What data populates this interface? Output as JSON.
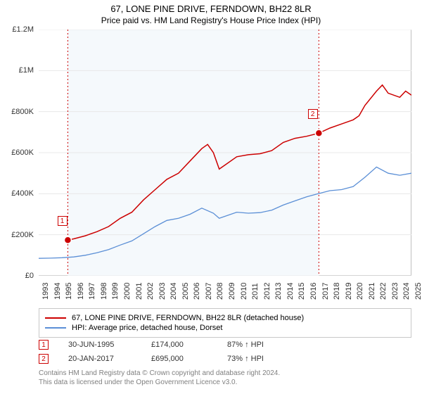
{
  "title": "67, LONE PINE DRIVE, FERNDOWN, BH22 8LR",
  "subtitle": "Price paid vs. HM Land Registry's House Price Index (HPI)",
  "chart": {
    "type": "line",
    "background_color": "#ffffff",
    "plot_band_color": "#f5f9fc",
    "grid_color": "#e8e8e8",
    "axis_color": "#c0c0c0",
    "x_start": 1993,
    "x_end": 2025,
    "x_ticks": [
      1993,
      1994,
      1995,
      1996,
      1997,
      1998,
      1999,
      2000,
      2001,
      2002,
      2003,
      2004,
      2005,
      2006,
      2007,
      2008,
      2009,
      2010,
      2011,
      2012,
      2013,
      2014,
      2015,
      2016,
      2017,
      2018,
      2019,
      2020,
      2021,
      2022,
      2023,
      2024,
      2025
    ],
    "y_min": 0,
    "y_max": 1200000,
    "y_ticks": [
      0,
      200000,
      400000,
      600000,
      800000,
      1000000,
      1200000
    ],
    "y_labels": [
      "£0",
      "£200K",
      "£400K",
      "£600K",
      "£800K",
      "£1M",
      "£1.2M"
    ],
    "y_label_fontsize": 11,
    "x_label_fontsize": 11,
    "series": [
      {
        "name": "address",
        "color": "#cc0000",
        "width": 1.5,
        "data": [
          [
            1995.5,
            174000
          ],
          [
            1996,
            180000
          ],
          [
            1997,
            195000
          ],
          [
            1998,
            215000
          ],
          [
            1999,
            240000
          ],
          [
            2000,
            280000
          ],
          [
            2001,
            310000
          ],
          [
            2002,
            370000
          ],
          [
            2003,
            420000
          ],
          [
            2004,
            470000
          ],
          [
            2005,
            500000
          ],
          [
            2006,
            560000
          ],
          [
            2007,
            620000
          ],
          [
            2007.5,
            640000
          ],
          [
            2008,
            600000
          ],
          [
            2008.5,
            520000
          ],
          [
            2009,
            540000
          ],
          [
            2010,
            580000
          ],
          [
            2011,
            590000
          ],
          [
            2012,
            595000
          ],
          [
            2013,
            610000
          ],
          [
            2014,
            650000
          ],
          [
            2015,
            670000
          ],
          [
            2016,
            680000
          ],
          [
            2017.05,
            695000
          ],
          [
            2018,
            720000
          ],
          [
            2019,
            740000
          ],
          [
            2020,
            760000
          ],
          [
            2020.5,
            780000
          ],
          [
            2021,
            830000
          ],
          [
            2022,
            900000
          ],
          [
            2022.5,
            930000
          ],
          [
            2023,
            890000
          ],
          [
            2024,
            870000
          ],
          [
            2024.5,
            900000
          ],
          [
            2025,
            880000
          ]
        ]
      },
      {
        "name": "hpi",
        "color": "#5b8fd6",
        "width": 1.3,
        "data": [
          [
            1993,
            85000
          ],
          [
            1994,
            86000
          ],
          [
            1995,
            88000
          ],
          [
            1996,
            92000
          ],
          [
            1997,
            100000
          ],
          [
            1998,
            112000
          ],
          [
            1999,
            128000
          ],
          [
            2000,
            150000
          ],
          [
            2001,
            170000
          ],
          [
            2002,
            205000
          ],
          [
            2003,
            240000
          ],
          [
            2004,
            270000
          ],
          [
            2005,
            280000
          ],
          [
            2006,
            300000
          ],
          [
            2007,
            330000
          ],
          [
            2008,
            305000
          ],
          [
            2008.5,
            280000
          ],
          [
            2009,
            290000
          ],
          [
            2010,
            310000
          ],
          [
            2011,
            305000
          ],
          [
            2012,
            308000
          ],
          [
            2013,
            320000
          ],
          [
            2014,
            345000
          ],
          [
            2015,
            365000
          ],
          [
            2016,
            385000
          ],
          [
            2017,
            400000
          ],
          [
            2018,
            415000
          ],
          [
            2019,
            420000
          ],
          [
            2020,
            435000
          ],
          [
            2021,
            480000
          ],
          [
            2022,
            530000
          ],
          [
            2023,
            500000
          ],
          [
            2024,
            490000
          ],
          [
            2025,
            500000
          ]
        ]
      }
    ],
    "markers": [
      {
        "id": "1",
        "x": 1995.5,
        "y": 174000,
        "label_x": 1994.6,
        "label_y_offset": -34
      },
      {
        "id": "2",
        "x": 2017.05,
        "y": 695000,
        "label_x": 2016.1,
        "label_y_offset": -34
      }
    ],
    "plot_bands": [
      {
        "from": 1995.5,
        "to": 2017.05
      }
    ],
    "marker_dashline_color": "#cc0000"
  },
  "legend": {
    "items": [
      {
        "color": "#cc0000",
        "label": "67, LONE PINE DRIVE, FERNDOWN, BH22 8LR (detached house)"
      },
      {
        "color": "#5b8fd6",
        "label": "HPI: Average price, detached house, Dorset"
      }
    ]
  },
  "footer": {
    "rows": [
      {
        "marker": "1",
        "date": "30-JUN-1995",
        "price": "£174,000",
        "pct": "87% ↑ HPI"
      },
      {
        "marker": "2",
        "date": "20-JAN-2017",
        "price": "£695,000",
        "pct": "73% ↑ HPI"
      }
    ]
  },
  "attribution": {
    "line1": "Contains HM Land Registry data © Crown copyright and database right 2024.",
    "line2": "This data is licensed under the Open Government Licence v3.0."
  }
}
